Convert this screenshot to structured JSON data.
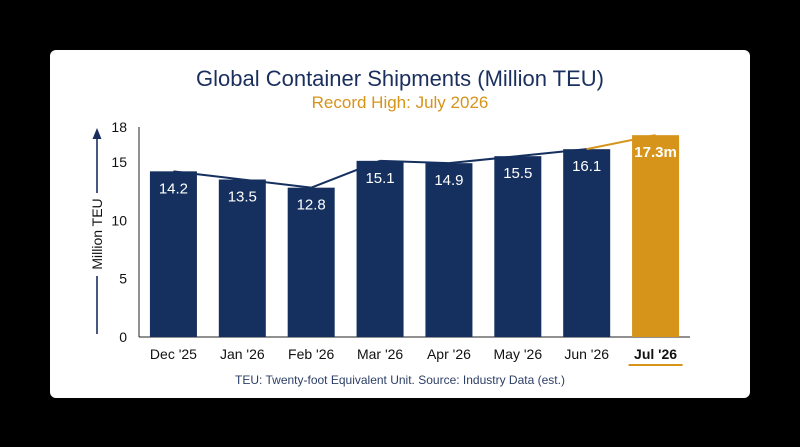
{
  "chart_data": {
    "type": "bar",
    "title": "Global Container Shipments (Million TEU)",
    "subtitle": "Record High: July 2026",
    "ylabel": "Million TEU",
    "xlabel": "",
    "categories": [
      "Dec '25",
      "Jan '26",
      "Feb '26",
      "Mar '26",
      "Apr '26",
      "May '26",
      "Jun '26",
      "Jul '26"
    ],
    "values": [
      14.2,
      13.5,
      12.8,
      15.1,
      14.9,
      15.5,
      16.1,
      17.3
    ],
    "data_labels": [
      "14.2",
      "13.5",
      "12.8",
      "15.1",
      "14.9",
      "15.5",
      "16.1",
      "17.3m"
    ],
    "highlight_index": 7,
    "trend_line": true,
    "ylim": [
      0,
      18
    ],
    "yticks": [
      0,
      5,
      10,
      15,
      18
    ],
    "grid": false,
    "footnote": "TEU: Twenty-foot Equivalent Unit. Source: Industry Data (est.)"
  },
  "colors": {
    "bar": "#15305f",
    "highlight": "#d6941a",
    "trend": "#15305f",
    "axis": "#1b2f5e"
  }
}
